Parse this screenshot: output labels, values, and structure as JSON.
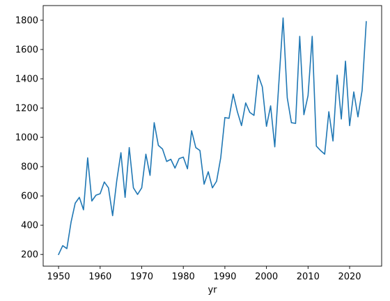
{
  "chart_data": {
    "type": "line",
    "title": "",
    "xlabel": "yr",
    "ylabel": "",
    "xlim": [
      1946.3,
      2027.7
    ],
    "ylim": [
      120,
      1900
    ],
    "xticks": [
      1950,
      1960,
      1970,
      1980,
      1990,
      2000,
      2010,
      2020
    ],
    "yticks": [
      200,
      400,
      600,
      800,
      1000,
      1200,
      1400,
      1600,
      1800
    ],
    "grid": false,
    "legend": "none",
    "series": [
      {
        "color": "#1f77b4",
        "x": [
          1950,
          1951,
          1952,
          1953,
          1954,
          1955,
          1956,
          1957,
          1958,
          1959,
          1960,
          1961,
          1962,
          1963,
          1964,
          1965,
          1966,
          1967,
          1968,
          1969,
          1970,
          1971,
          1972,
          1973,
          1974,
          1975,
          1976,
          1977,
          1978,
          1979,
          1980,
          1981,
          1982,
          1983,
          1984,
          1985,
          1986,
          1987,
          1988,
          1989,
          1990,
          1991,
          1992,
          1993,
          1994,
          1995,
          1996,
          1997,
          1998,
          1999,
          2000,
          2001,
          2002,
          2003,
          2004,
          2005,
          2006,
          2007,
          2008,
          2009,
          2010,
          2011,
          2012,
          2013,
          2014,
          2015,
          2016,
          2017,
          2018,
          2019,
          2020,
          2021,
          2022,
          2023,
          2024
        ],
        "y": [
          200,
          260,
          240,
          420,
          550,
          590,
          505,
          860,
          565,
          605,
          615,
          695,
          655,
          465,
          705,
          895,
          590,
          930,
          655,
          610,
          655,
          885,
          740,
          1100,
          945,
          920,
          835,
          850,
          790,
          855,
          865,
          785,
          1045,
          930,
          910,
          680,
          765,
          655,
          700,
          860,
          1135,
          1130,
          1295,
          1175,
          1080,
          1235,
          1170,
          1150,
          1425,
          1345,
          1075,
          1215,
          935,
          1380,
          1815,
          1270,
          1100,
          1095,
          1690,
          1155,
          1285,
          1690,
          940,
          910,
          885,
          1175,
          975,
          1425,
          1125,
          1520,
          1080,
          1310,
          1140,
          1320,
          1790
        ]
      }
    ]
  }
}
